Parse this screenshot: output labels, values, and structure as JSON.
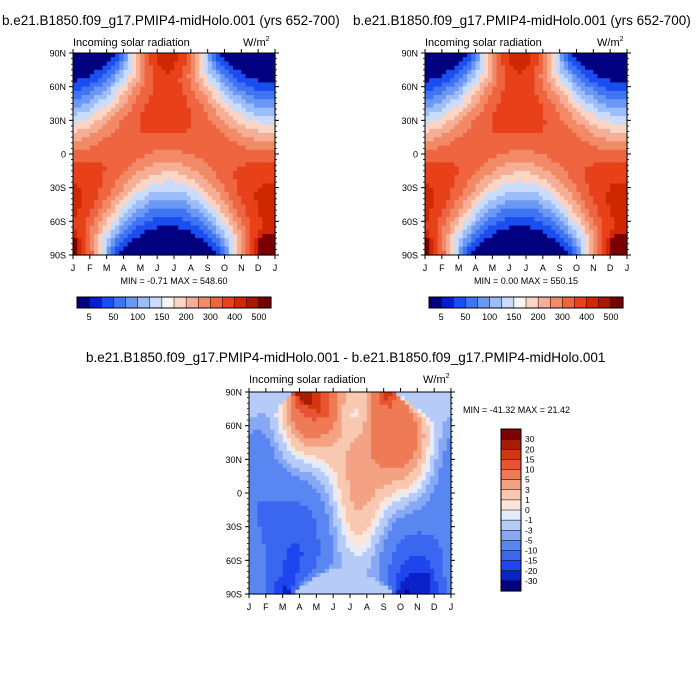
{
  "panels": [
    {
      "title": "b.e21.B1850.f09_g17.PMIP4-midHolo.001 (yrs 652-700)",
      "left_label": "Incoming solar radiation",
      "units": "W/m",
      "units_sup": "2",
      "minmax": "MIN =  -0.71 MAX = 548.60"
    },
    {
      "title": "b.e21.B1850.f09_g17.PMIP4-midHolo.001 (yrs 652-700)",
      "left_label": "Incoming solar radiation",
      "units": "W/m",
      "units_sup": "2",
      "minmax": "MIN =   0.00 MAX = 550.15"
    },
    {
      "title": "b.e21.B1850.f09_g17.PMIP4-midHolo.001 - b.e21.B1850.f09_g17.PMIP4-midHolo.001",
      "left_label": "Incoming solar radiation",
      "units": "W/m",
      "units_sup": "2",
      "minmax": "MIN = -41.32 MAX =  21.42"
    }
  ],
  "colors": {
    "abs_scale": [
      "#000080",
      "#0020d0",
      "#1a4ef0",
      "#3f74f2",
      "#6c98f5",
      "#9dbdf8",
      "#cadcfb",
      "#f5f5f5",
      "#fbd5c5",
      "#f6ae94",
      "#f28a68",
      "#ee6540",
      "#e84018",
      "#cf2800",
      "#a81800",
      "#7a0000"
    ],
    "diff_scale": [
      "#000080",
      "#0a23c8",
      "#1e45ee",
      "#3a66f0",
      "#5a86f2",
      "#86a8f5",
      "#b6cbf8",
      "#e4ecfb",
      "#fbe6dc",
      "#f8c8b0",
      "#f3a283",
      "#ee7b56",
      "#e85330",
      "#d63510",
      "#a81c00",
      "#800000"
    ]
  },
  "chart_data": [
    {
      "type": "heatmap",
      "title": "b.e21.B1850.f09_g17.PMIP4-midHolo.001 (yrs 652-700)",
      "x_ticks": [
        "J",
        "F",
        "M",
        "A",
        "M",
        "J",
        "J",
        "A",
        "S",
        "O",
        "N",
        "D",
        "J"
      ],
      "y_ticks": [
        "90N",
        "60N",
        "30N",
        "0",
        "30S",
        "60S",
        "90S"
      ],
      "y_range": [
        -90,
        90
      ],
      "x_range": [
        0,
        12
      ],
      "colorbar_levels": [
        5,
        50,
        100,
        150,
        200,
        300,
        400,
        500
      ],
      "min": -0.71,
      "max": 548.6,
      "grid": false
    },
    {
      "type": "heatmap",
      "title": "b.e21.B1850.f09_g17.PMIP4-midHolo.001 (yrs 652-700)",
      "x_ticks": [
        "J",
        "F",
        "M",
        "A",
        "M",
        "J",
        "J",
        "A",
        "S",
        "O",
        "N",
        "D",
        "J"
      ],
      "y_ticks": [
        "90N",
        "60N",
        "30N",
        "0",
        "30S",
        "60S",
        "90S"
      ],
      "y_range": [
        -90,
        90
      ],
      "x_range": [
        0,
        12
      ],
      "colorbar_levels": [
        5,
        50,
        100,
        150,
        200,
        300,
        400,
        500
      ],
      "min": 0.0,
      "max": 550.15,
      "grid": false
    },
    {
      "type": "heatmap",
      "title": "b.e21.B1850.f09_g17.PMIP4-midHolo.001 - b.e21.B1850.f09_g17.PMIP4-midHolo.001",
      "x_ticks": [
        "J",
        "F",
        "M",
        "A",
        "M",
        "J",
        "J",
        "A",
        "S",
        "O",
        "N",
        "D",
        "J"
      ],
      "y_ticks": [
        "90N",
        "60N",
        "30N",
        "0",
        "30S",
        "60S",
        "90S"
      ],
      "y_range": [
        -90,
        90
      ],
      "x_range": [
        0,
        12
      ],
      "colorbar_levels": [
        30,
        20,
        15,
        10,
        5,
        3,
        1,
        0,
        -1,
        -3,
        -5,
        -10,
        -15,
        -20,
        -30
      ],
      "min": -41.32,
      "max": 21.42,
      "grid": false
    }
  ]
}
